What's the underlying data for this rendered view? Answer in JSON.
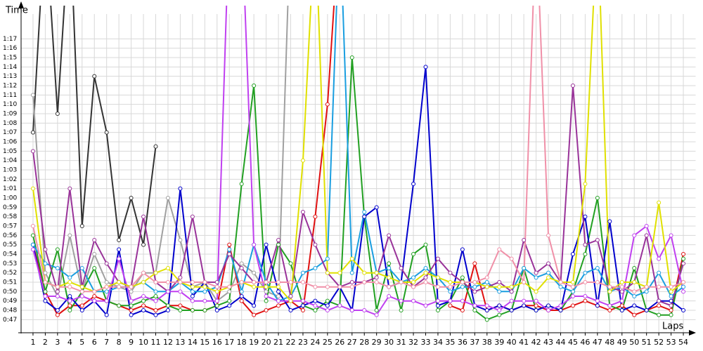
{
  "chart_data": {
    "type": "line",
    "x_label": "Laps",
    "y_label": "Time",
    "x": [
      1,
      2,
      3,
      4,
      5,
      6,
      7,
      8,
      9,
      10,
      11,
      12,
      13,
      14,
      15,
      16,
      17,
      18,
      19,
      20,
      21,
      22,
      23,
      24,
      25,
      26,
      27,
      28,
      29,
      30,
      31,
      32,
      33,
      34,
      35,
      36,
      37,
      38,
      39,
      40,
      41,
      42,
      43,
      44,
      45,
      46,
      47,
      48,
      49,
      50,
      51,
      52,
      53,
      54
    ],
    "xlim": [
      0,
      55
    ],
    "xticks": [
      1,
      2,
      3,
      4,
      5,
      6,
      7,
      8,
      9,
      10,
      11,
      12,
      13,
      14,
      15,
      16,
      17,
      18,
      19,
      20,
      21,
      22,
      23,
      24,
      25,
      26,
      27,
      28,
      29,
      30,
      31,
      32,
      33,
      34,
      35,
      36,
      37,
      38,
      39,
      40,
      41,
      42,
      43,
      44,
      45,
      46,
      47,
      48,
      49,
      50,
      51,
      52,
      53,
      54
    ],
    "ylim": [
      45.6,
      78.9
    ],
    "yticks": [
      {
        "value": 47,
        "label": "0:47"
      },
      {
        "value": 48,
        "label": "0:48"
      },
      {
        "value": 49,
        "label": "0:49"
      },
      {
        "value": 50,
        "label": "0:50"
      },
      {
        "value": 51,
        "label": "0:51"
      },
      {
        "value": 52,
        "label": "0:52"
      },
      {
        "value": 53,
        "label": "0:53"
      },
      {
        "value": 54,
        "label": "0:54"
      },
      {
        "value": 55,
        "label": "0:55"
      },
      {
        "value": 56,
        "label": "0:56"
      },
      {
        "value": 57,
        "label": "0:57"
      },
      {
        "value": 58,
        "label": "0:58"
      },
      {
        "value": 59,
        "label": "0:59"
      },
      {
        "value": 60,
        "label": "1:00"
      },
      {
        "value": 61,
        "label": "1:01"
      },
      {
        "value": 62,
        "label": "1:02"
      },
      {
        "value": 63,
        "label": "1:03"
      },
      {
        "value": 64,
        "label": "1:04"
      },
      {
        "value": 65,
        "label": "1:05"
      },
      {
        "value": 66,
        "label": "1:06"
      },
      {
        "value": 67,
        "label": "1:07"
      },
      {
        "value": 68,
        "label": "1:08"
      },
      {
        "value": 69,
        "label": "1:09"
      },
      {
        "value": 70,
        "label": "1:10"
      },
      {
        "value": 71,
        "label": "1:11"
      },
      {
        "value": 72,
        "label": "1:12"
      },
      {
        "value": 73,
        "label": "1:13"
      },
      {
        "value": 74,
        "label": "1:14"
      },
      {
        "value": 75,
        "label": "1:15"
      },
      {
        "value": 76,
        "label": "1:16"
      },
      {
        "value": 77,
        "label": "1:17"
      }
    ],
    "grid": true,
    "series": [
      {
        "color": "#333333",
        "values": [
          67,
          90,
          69,
          90,
          57,
          73,
          67,
          55.5,
          60,
          55,
          65.5,
          null,
          null,
          null,
          null,
          null,
          null,
          null,
          null,
          null,
          null,
          null,
          null,
          null,
          null,
          null,
          null,
          null,
          null,
          null,
          null,
          null,
          null,
          null,
          null,
          null,
          null,
          null,
          null,
          null,
          null,
          null,
          null,
          null,
          null,
          null,
          null,
          null,
          null,
          null,
          null,
          null,
          null,
          null
        ]
      },
      {
        "color": "#a0a0a0",
        "values": [
          71,
          52,
          49.5,
          56,
          50,
          54,
          51,
          50.5,
          50,
          52,
          52,
          60,
          55.5,
          50.5,
          51,
          49,
          50,
          53,
          52,
          50,
          49.5,
          90,
          null,
          null,
          null,
          null,
          null,
          null,
          null,
          null,
          null,
          null,
          null,
          null,
          null,
          null,
          null,
          null,
          null,
          null,
          null,
          null,
          null,
          null,
          null,
          null,
          null,
          null,
          null,
          null,
          null,
          null,
          null,
          null
        ]
      },
      {
        "color": "#e01010",
        "values": [
          55,
          50,
          47.5,
          48.5,
          48.5,
          49.5,
          49,
          48.5,
          48,
          48.5,
          48,
          48.5,
          48.5,
          48,
          48,
          48.5,
          55,
          49,
          47.5,
          48,
          48.5,
          49,
          48,
          58,
          70,
          90,
          null,
          null,
          null,
          null,
          null,
          null,
          null,
          null,
          48.5,
          48,
          53,
          48,
          48.5,
          48,
          48.5,
          48.5,
          48,
          48,
          48.5,
          49,
          48.5,
          48,
          48.5,
          47.5,
          48,
          48.5,
          48,
          54
        ]
      },
      {
        "color": "#22a022",
        "values": [
          56,
          50,
          54.5,
          48,
          50,
          52.5,
          49,
          48.5,
          48.5,
          49,
          49.5,
          48.5,
          48,
          48,
          48,
          48.5,
          49,
          61.5,
          72,
          49,
          55,
          53,
          48.5,
          48,
          49,
          48.5,
          75,
          58,
          48,
          53,
          48,
          54,
          55,
          48,
          49,
          51.5,
          48,
          47,
          47.5,
          48,
          52.5,
          48,
          48.5,
          48,
          50,
          54,
          60,
          48.5,
          48,
          52.5,
          48,
          47.5,
          47.5,
          53.5
        ]
      },
      {
        "color": "#0000cc",
        "values": [
          55,
          49,
          48,
          49.5,
          48,
          49,
          47.5,
          54.5,
          47.5,
          48,
          47.5,
          48,
          61,
          49.5,
          51,
          48,
          48.5,
          49.5,
          48.5,
          55,
          50,
          48,
          48.5,
          49,
          48.5,
          50.5,
          48,
          58,
          59,
          50.5,
          51,
          61.5,
          74,
          48.5,
          49,
          54.5,
          48.5,
          48,
          48.5,
          48,
          48.5,
          48,
          48.5,
          48,
          54,
          58,
          48.5,
          57.5,
          48,
          48.5,
          48,
          49,
          49,
          48
        ]
      },
      {
        "color": "#1a9ee0",
        "values": [
          55,
          53,
          52.5,
          51.5,
          52.5,
          50,
          50,
          50.5,
          50.5,
          51,
          50,
          50,
          51,
          50,
          50,
          50.5,
          54.5,
          50,
          55,
          51,
          49,
          49.5,
          52,
          52.5,
          53.5,
          90,
          52,
          58.5,
          52,
          52.5,
          51,
          51.5,
          52.5,
          51.5,
          50,
          50.5,
          50.5,
          51,
          50,
          50,
          52.5,
          51.5,
          52,
          50.5,
          50,
          52,
          52.5,
          50,
          50.5,
          49.5,
          50,
          52,
          49.5,
          50.5
        ]
      },
      {
        "color": "#993399",
        "values": [
          65,
          54.5,
          50,
          61,
          50.5,
          55.5,
          53,
          51,
          50.5,
          58,
          51,
          50,
          51.5,
          58,
          51,
          51,
          54,
          52.5,
          51,
          51,
          55.5,
          49.5,
          58.5,
          55,
          52,
          50.5,
          51,
          51,
          51.5,
          56,
          52.5,
          50.5,
          51.5,
          53.5,
          52,
          51,
          50,
          50.5,
          51,
          50,
          55.5,
          52,
          53,
          51,
          72,
          55,
          55.5,
          50.5,
          50,
          51,
          56,
          49,
          48.5,
          53
        ]
      },
      {
        "color": "#c040f0",
        "values": [
          54.5,
          49.5,
          49.5,
          49,
          49.5,
          49,
          49,
          53.5,
          49,
          49.5,
          49,
          50,
          50,
          49,
          49,
          49,
          90,
          90,
          55,
          49.5,
          49,
          49,
          49,
          48.5,
          48,
          48.5,
          48,
          48,
          47.5,
          49.5,
          49,
          49,
          48.5,
          49,
          49,
          49,
          48.5,
          48.5,
          48,
          49,
          49,
          49,
          48,
          48.5,
          49.5,
          49.5,
          49,
          48.5,
          49,
          56,
          57,
          53.5,
          56,
          50
        ]
      },
      {
        "color": "#e0e000",
        "values": [
          61,
          51,
          50.5,
          51,
          50.5,
          50,
          50.5,
          51,
          50.5,
          51,
          52,
          52.5,
          51,
          50.5,
          50.5,
          50,
          50.5,
          51,
          50.5,
          50.5,
          50.5,
          49,
          64,
          90,
          52,
          52,
          53.5,
          52,
          52,
          51.5,
          51,
          51,
          52,
          51.5,
          51,
          51,
          51,
          50.5,
          50.5,
          50.5,
          51,
          50,
          51.5,
          51,
          51,
          61.5,
          90,
          50,
          51,
          51,
          50.5,
          59.5,
          50,
          51
        ]
      },
      {
        "color": "#f090a8",
        "values": [
          57,
          51,
          50.5,
          50.5,
          50,
          50,
          50.5,
          50.5,
          50.5,
          52,
          51,
          51,
          51,
          51,
          51,
          50.5,
          50.5,
          51,
          51,
          51,
          51,
          51,
          51,
          50.5,
          50.5,
          50.5,
          50.5,
          51,
          51,
          50.5,
          51,
          50.5,
          51,
          50.5,
          50.5,
          51,
          51,
          51.5,
          54.5,
          53.5,
          51,
          90,
          56,
          51,
          50.5,
          51,
          51,
          50.5,
          50.5,
          50,
          50.5,
          50.5,
          50.5,
          51
        ]
      }
    ]
  }
}
